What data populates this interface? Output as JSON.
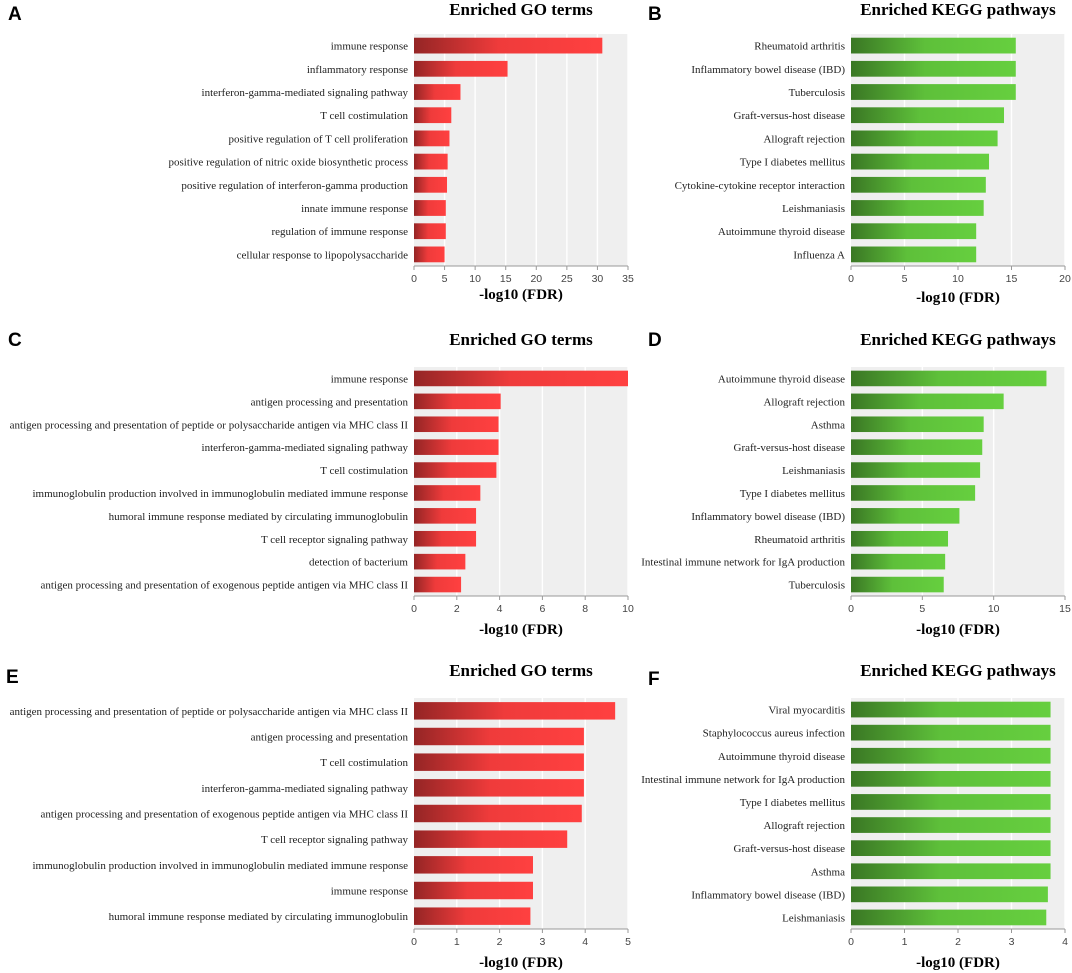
{
  "chart_data": [
    {
      "panel": "A",
      "type": "bar",
      "orientation": "horizontal",
      "title": "Enriched GO terms",
      "xlabel": "-log10 (FDR)",
      "ylabel": "",
      "xlim": [
        0,
        35
      ],
      "xticks": [
        "0",
        "5",
        "10",
        "15",
        "20",
        "25",
        "30",
        "35"
      ],
      "color": "#ef3b3b",
      "categories": [
        "immune response",
        "inflammatory response",
        "interferon-gamma-mediated signaling pathway",
        "T cell costimulation",
        "positive regulation of T cell proliferation",
        "positive regulation of nitric oxide biosynthetic process",
        "positive regulation of interferon-gamma production",
        "innate immune response",
        "regulation of immune response",
        "cellular response to lipopolysaccharide"
      ],
      "values": [
        30.8,
        15.3,
        7.6,
        6.1,
        5.8,
        5.5,
        5.4,
        5.2,
        5.2,
        5.0
      ]
    },
    {
      "panel": "B",
      "type": "bar",
      "orientation": "horizontal",
      "title": "Enriched KEGG pathways",
      "xlabel": "-log10 (FDR)",
      "ylabel": "",
      "xlim": [
        0,
        20
      ],
      "xticks": [
        "0",
        "5",
        "10",
        "15",
        "20"
      ],
      "color": "#5ec03a",
      "categories": [
        "Rheumatoid arthritis",
        "Inflammatory bowel disease (IBD)",
        "Tuberculosis",
        "Graft-versus-host disease",
        "Allograft rejection",
        "Type I diabetes mellitus",
        "Cytokine-cytokine receptor interaction",
        "Leishmaniasis",
        "Autoimmune thyroid disease",
        "Influenza A"
      ],
      "values": [
        15.4,
        15.4,
        15.4,
        14.3,
        13.7,
        12.9,
        12.6,
        12.4,
        11.7,
        11.7
      ]
    },
    {
      "panel": "C",
      "type": "bar",
      "orientation": "horizontal",
      "title": "Enriched GO terms",
      "xlabel": "-log10 (FDR)",
      "ylabel": "",
      "xlim": [
        0,
        10
      ],
      "xticks": [
        "0",
        "2",
        "4",
        "6",
        "8",
        "10"
      ],
      "color": "#ef3b3b",
      "categories": [
        "immune response",
        "antigen processing and presentation",
        "antigen processing and presentation of peptide or polysaccharide antigen via MHC class II",
        "interferon-gamma-mediated signaling pathway",
        "T cell costimulation",
        "immunoglobulin production involved in immunoglobulin mediated immune response",
        "humoral immune response mediated by circulating immunoglobulin",
        "T cell receptor signaling pathway",
        "detection of bacterium",
        "antigen processing and presentation of exogenous peptide antigen via MHC class II"
      ],
      "values": [
        10.0,
        4.05,
        3.95,
        3.95,
        3.85,
        3.1,
        2.9,
        2.9,
        2.4,
        2.2
      ]
    },
    {
      "panel": "D",
      "type": "bar",
      "orientation": "horizontal",
      "title": "Enriched KEGG pathways",
      "xlabel": "-log10 (FDR)",
      "ylabel": "",
      "xlim": [
        0,
        15
      ],
      "xticks": [
        "0",
        "5",
        "10",
        "15"
      ],
      "color": "#5ec03a",
      "categories": [
        "Autoimmune thyroid disease",
        "Allograft rejection",
        "Asthma",
        "Graft-versus-host disease",
        "Leishmaniasis",
        "Type I diabetes mellitus",
        "Inflammatory bowel disease (IBD)",
        "Rheumatoid arthritis",
        "Intestinal immune network for IgA production",
        "Tuberculosis"
      ],
      "values": [
        13.7,
        10.7,
        9.3,
        9.2,
        9.05,
        8.7,
        7.6,
        6.8,
        6.6,
        6.5
      ]
    },
    {
      "panel": "E",
      "type": "bar",
      "orientation": "horizontal",
      "title": "Enriched GO terms",
      "xlabel": "-log10 (FDR)",
      "ylabel": "",
      "xlim": [
        0,
        5
      ],
      "xticks": [
        "0",
        "1",
        "2",
        "3",
        "4",
        "5"
      ],
      "color": "#ef3b3b",
      "categories": [
        "antigen processing and presentation of peptide or polysaccharide antigen via MHC class II",
        "antigen processing and presentation",
        "T cell costimulation",
        "interferon-gamma-mediated signaling pathway",
        "antigen processing and presentation of exogenous peptide antigen via MHC class II",
        "T cell receptor signaling pathway",
        "immunoglobulin production involved in immunoglobulin mediated immune response",
        "immune response",
        "humoral immune response mediated by circulating immunoglobulin"
      ],
      "values": [
        4.7,
        3.97,
        3.97,
        3.97,
        3.92,
        3.58,
        2.78,
        2.78,
        2.72
      ]
    },
    {
      "panel": "F",
      "type": "bar",
      "orientation": "horizontal",
      "title": "Enriched KEGG pathways",
      "xlabel": "-log10 (FDR)",
      "ylabel": "",
      "xlim": [
        0,
        4
      ],
      "xticks": [
        "0",
        "1",
        "2",
        "3",
        "4"
      ],
      "color": "#5ec03a",
      "categories": [
        "Viral myocarditis",
        "Staphylococcus aureus infection",
        "Autoimmune thyroid disease",
        "Intestinal immune network for IgA production",
        "Type I diabetes mellitus",
        "Allograft rejection",
        "Graft-versus-host disease",
        "Asthma",
        "Inflammatory bowel disease (IBD)",
        "Leishmaniasis"
      ],
      "values": [
        3.73,
        3.73,
        3.73,
        3.73,
        3.73,
        3.73,
        3.73,
        3.73,
        3.68,
        3.65
      ]
    }
  ]
}
